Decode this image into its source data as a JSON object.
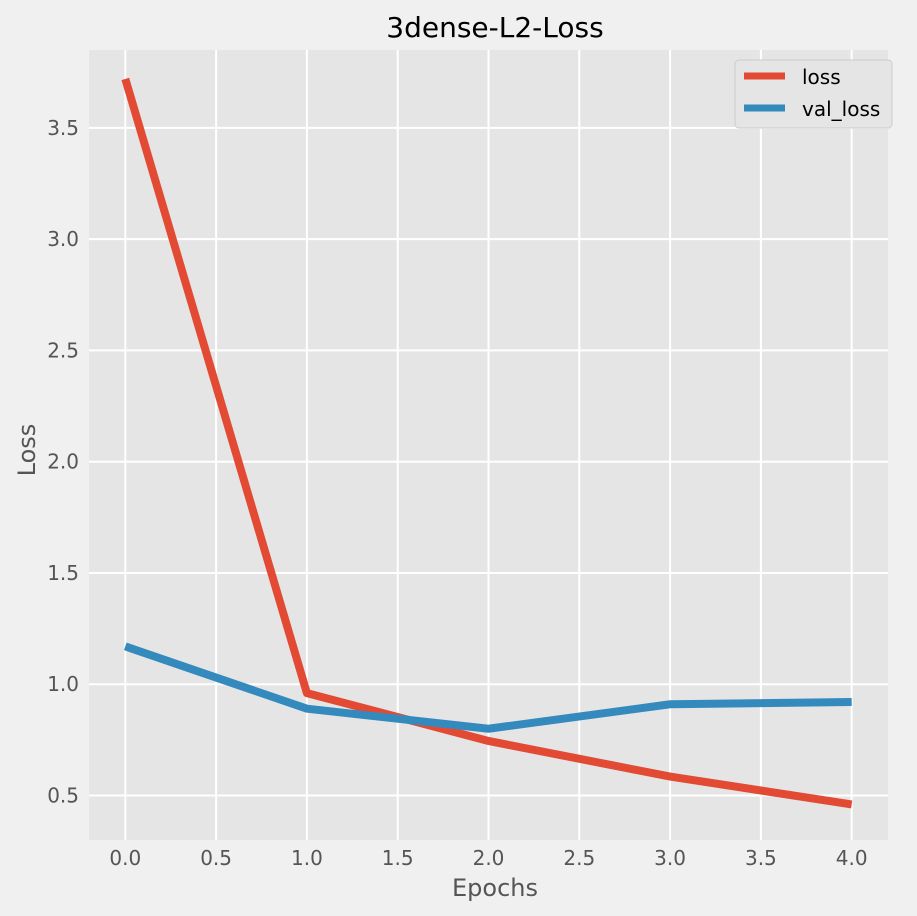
{
  "chart_data": {
    "type": "line",
    "title": "3dense-L2-Loss",
    "xlabel": "Epochs",
    "ylabel": "Loss",
    "xlim": [
      -0.2,
      4.2
    ],
    "ylim": [
      0.3,
      3.85
    ],
    "xticks": [
      0.0,
      0.5,
      1.0,
      1.5,
      2.0,
      2.5,
      3.0,
      3.5,
      4.0
    ],
    "xtick_labels": [
      "0.0",
      "0.5",
      "1.0",
      "1.5",
      "2.0",
      "2.5",
      "3.0",
      "3.5",
      "4.0"
    ],
    "yticks": [
      0.5,
      1.0,
      1.5,
      2.0,
      2.5,
      3.0,
      3.5
    ],
    "ytick_labels": [
      "0.5",
      "1.0",
      "1.5",
      "2.0",
      "2.5",
      "3.0",
      "3.5"
    ],
    "grid": true,
    "legend_position": "top-right",
    "x": [
      0,
      1,
      2,
      3,
      4
    ],
    "series": [
      {
        "name": "loss",
        "color": "#e24a33",
        "values": [
          3.72,
          0.96,
          0.745,
          0.585,
          0.46
        ]
      },
      {
        "name": "val_loss",
        "color": "#348abd",
        "values": [
          1.17,
          0.89,
          0.8,
          0.91,
          0.92
        ]
      }
    ]
  }
}
